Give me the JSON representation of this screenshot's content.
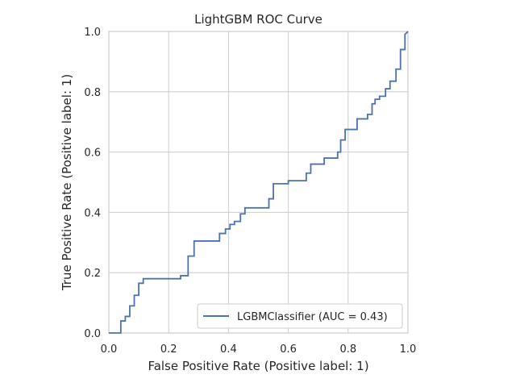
{
  "chart_data": {
    "type": "line",
    "title": "LightGBM ROC Curve",
    "xlabel": "False Positive Rate (Positive label: 1)",
    "ylabel": "True Positive Rate (Positive label: 1)",
    "xlim": [
      0.0,
      1.0
    ],
    "ylim": [
      0.0,
      1.0
    ],
    "xticks": [
      "0.0",
      "0.2",
      "0.4",
      "0.6",
      "0.8",
      "1.0"
    ],
    "yticks": [
      "0.0",
      "0.2",
      "0.4",
      "0.6",
      "0.8",
      "1.0"
    ],
    "grid": true,
    "legend_position": "lower-right",
    "series": [
      {
        "name": "LGBMClassifier (AUC = 0.43)",
        "color": "#4c72b0",
        "step": true,
        "x": [
          0.0,
          0.04,
          0.04,
          0.055,
          0.055,
          0.07,
          0.07,
          0.085,
          0.085,
          0.1,
          0.1,
          0.115,
          0.115,
          0.24,
          0.24,
          0.265,
          0.265,
          0.285,
          0.285,
          0.37,
          0.37,
          0.39,
          0.39,
          0.405,
          0.405,
          0.42,
          0.42,
          0.44,
          0.44,
          0.455,
          0.455,
          0.535,
          0.535,
          0.55,
          0.55,
          0.6,
          0.6,
          0.66,
          0.66,
          0.675,
          0.675,
          0.72,
          0.72,
          0.765,
          0.765,
          0.775,
          0.775,
          0.79,
          0.79,
          0.83,
          0.83,
          0.865,
          0.865,
          0.88,
          0.88,
          0.89,
          0.89,
          0.905,
          0.905,
          0.925,
          0.925,
          0.94,
          0.94,
          0.96,
          0.96,
          0.975,
          0.975,
          0.99,
          0.99,
          1.0
        ],
        "y": [
          0.0,
          0.0,
          0.04,
          0.04,
          0.055,
          0.055,
          0.09,
          0.09,
          0.125,
          0.125,
          0.165,
          0.165,
          0.18,
          0.18,
          0.19,
          0.19,
          0.255,
          0.255,
          0.305,
          0.305,
          0.33,
          0.33,
          0.345,
          0.345,
          0.36,
          0.36,
          0.37,
          0.37,
          0.395,
          0.395,
          0.415,
          0.415,
          0.445,
          0.445,
          0.495,
          0.495,
          0.505,
          0.505,
          0.53,
          0.53,
          0.56,
          0.56,
          0.58,
          0.58,
          0.6,
          0.6,
          0.64,
          0.64,
          0.675,
          0.675,
          0.71,
          0.71,
          0.725,
          0.725,
          0.76,
          0.76,
          0.775,
          0.775,
          0.785,
          0.785,
          0.81,
          0.81,
          0.835,
          0.835,
          0.875,
          0.875,
          0.94,
          0.94,
          0.99,
          1.0
        ]
      }
    ]
  }
}
